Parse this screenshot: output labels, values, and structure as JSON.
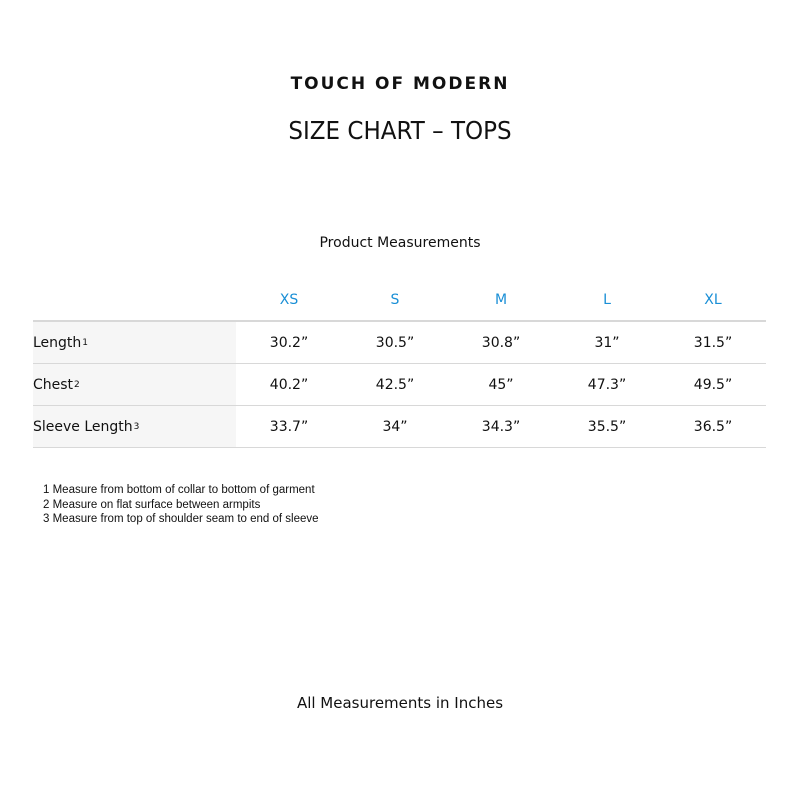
{
  "brand": "TOUCH OF MODERN",
  "title": "SIZE CHART – TOPS",
  "subtitle": "Product Measurements",
  "accent_color": "#1a8fd6",
  "sizes": [
    "XS",
    "S",
    "M",
    "L",
    "XL"
  ],
  "rows": [
    {
      "label": "Length",
      "note": "1",
      "values": [
        "30.2”",
        "30.5”",
        "30.8”",
        "31”",
        "31.5”"
      ]
    },
    {
      "label": "Chest",
      "note": "2",
      "values": [
        "40.2”",
        "42.5”",
        "45”",
        "47.3”",
        "49.5”"
      ]
    },
    {
      "label": "Sleeve Length",
      "note": "3",
      "values": [
        "33.7”",
        "34”",
        "34.3”",
        "35.5”",
        "36.5”"
      ]
    }
  ],
  "notes": [
    "1 Measure from bottom of collar to bottom of garment",
    "2 Measure on flat surface between armpits",
    "3 Measure from top of shoulder seam to end of sleeve"
  ],
  "footer": "All Measurements in Inches"
}
